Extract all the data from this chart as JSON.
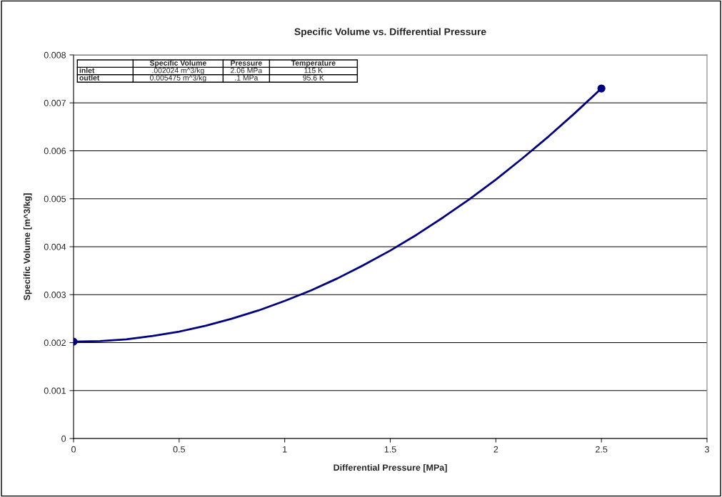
{
  "chart_data": {
    "type": "line",
    "title": "Specific Volume vs. Differential Pressure",
    "xlabel": "Differential Pressure [MPa]",
    "ylabel": "Specific Volume [m^3/kg]",
    "series": [
      {
        "color": "#000080",
        "marker": "none",
        "x": [
          0,
          0.125,
          0.25,
          0.375,
          0.5,
          0.625,
          0.75,
          0.875,
          1,
          1.125,
          1.25,
          1.375,
          1.5,
          1.625,
          1.75,
          1.875,
          2,
          2.125,
          2.25,
          2.375,
          2.5
        ],
        "values": [
          0.00202,
          0.00203,
          0.00207,
          0.00214,
          0.00223,
          0.00235,
          0.0025,
          0.00267,
          0.00287,
          0.00309,
          0.00334,
          0.00362,
          0.00392,
          0.00425,
          0.00461,
          0.00499,
          0.0054,
          0.00584,
          0.0063,
          0.00679,
          0.0073
        ]
      },
      {
        "type": "scatter",
        "color": "#000080",
        "marker": "circle",
        "x": [
          0,
          2.5
        ],
        "values": [
          0.00202,
          0.0073
        ]
      }
    ],
    "xlim": [
      0,
      3
    ],
    "xticks": [
      0,
      0.5,
      1,
      1.5,
      2,
      2.5,
      3
    ],
    "ylim": [
      0,
      0.008
    ],
    "yticks": [
      0,
      0.001,
      0.002,
      0.003,
      0.004,
      0.005,
      0.006,
      0.007,
      0.008
    ],
    "grid": "y",
    "legend": false,
    "annotations": [
      "Specific Volume",
      "Pressure",
      "Temperature",
      "inlet",
      ".002024 m^3/kg",
      "2.06 MPa",
      "115 K",
      "outlet",
      "0.005475 m^3/kg",
      ".1 MPa",
      "95.6 K"
    ]
  }
}
